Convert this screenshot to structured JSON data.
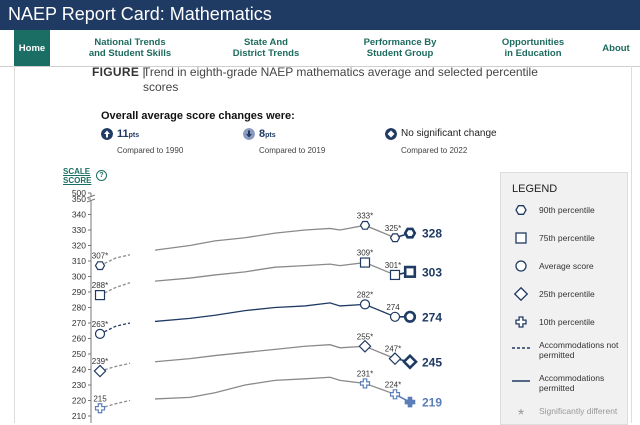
{
  "header": {
    "title": "NAEP Report Card: Mathematics"
  },
  "nav": [
    {
      "lines": [
        "Home"
      ],
      "active": true
    },
    {
      "lines": [
        "National Trends",
        "and Student Skills"
      ],
      "active": false
    },
    {
      "lines": [
        "State And",
        "District Trends"
      ],
      "active": false
    },
    {
      "lines": [
        "Performance By",
        "Student Group"
      ],
      "active": false
    },
    {
      "lines": [
        "Opportunities",
        "in Education"
      ],
      "active": false
    },
    {
      "lines": [
        "About"
      ],
      "active": false
    }
  ],
  "figure": {
    "label": "FIGURE",
    "separator": "|",
    "title": "Trend in eighth-grade NAEP mathematics average and selected percentile scores"
  },
  "summary": {
    "heading": "Overall average score changes were:",
    "items": [
      {
        "value": "11",
        "unit": "pts",
        "sub": "Compared to 1990",
        "icon": "arrow-up-icon"
      },
      {
        "value": "8",
        "unit": "pts",
        "sub": "Compared to 2019",
        "icon": "arrow-down-icon"
      },
      {
        "value": "No significant change",
        "unit": "",
        "sub": "Compared to 2022",
        "icon": "diamond-icon"
      }
    ]
  },
  "colors": {
    "navy": "#1f3a63",
    "teal": "#1a6e63",
    "gray": "#8a8a8a",
    "blue": "#5b7db8"
  },
  "legend": {
    "title": "LEGEND",
    "items": [
      {
        "label": "90th percentile",
        "icon": "hexagon-icon"
      },
      {
        "label": "75th percentile",
        "icon": "square-icon"
      },
      {
        "label": "Average score",
        "icon": "circle-icon"
      },
      {
        "label": "25th percentile",
        "icon": "diamond-icon"
      },
      {
        "label": "10th percentile",
        "icon": "cross-icon"
      },
      {
        "label": "Accommodations not permitted",
        "icon": "dashed-line-icon"
      },
      {
        "label": "Accommodations permitted",
        "icon": "solid-line-icon"
      },
      {
        "label": "Significantly different",
        "icon": "asterisk-icon"
      }
    ]
  },
  "chart_data": {
    "type": "line",
    "ylabel": "SCALE SCORE",
    "help_icon": "question-icon",
    "ylim": [
      210,
      500
    ],
    "axis_break_after": 350,
    "yticks": [
      500,
      350,
      340,
      330,
      320,
      310,
      300,
      290,
      280,
      270,
      260,
      250,
      240,
      230,
      220,
      210
    ],
    "x_index": [
      0,
      1,
      2,
      3,
      4,
      5,
      6,
      7,
      8,
      9,
      10,
      11,
      12,
      13,
      14
    ],
    "series": [
      {
        "name": "90th percentile",
        "marker": "hexagon",
        "values": [
          307,
          312,
          314,
          317,
          320,
          323,
          325,
          328,
          330,
          331,
          330,
          333,
          325,
          328,
          328
        ],
        "labels": [
          {
            "i": 0,
            "text": "307*"
          },
          {
            "i": 11,
            "text": "333*"
          },
          {
            "i": 12,
            "text": "325*"
          }
        ],
        "end_label": "328",
        "color": "gray",
        "last_color": "navy"
      },
      {
        "name": "75th percentile",
        "marker": "square",
        "values": [
          288,
          293,
          296,
          297,
          299,
          301,
          303,
          306,
          307,
          308,
          307,
          309,
          301,
          303,
          303
        ],
        "labels": [
          {
            "i": 0,
            "text": "288*"
          },
          {
            "i": 11,
            "text": "309*"
          },
          {
            "i": 12,
            "text": "301*"
          }
        ],
        "end_label": "303",
        "color": "gray",
        "last_color": "navy"
      },
      {
        "name": "Average score",
        "marker": "circle",
        "values": [
          263,
          268,
          270,
          271,
          273,
          275,
          278,
          280,
          281,
          283,
          281,
          282,
          274,
          274,
          274
        ],
        "labels": [
          {
            "i": 0,
            "text": "263*"
          },
          {
            "i": 11,
            "text": "282*"
          },
          {
            "i": 12,
            "text": "274"
          }
        ],
        "end_label": "274",
        "color": "navy",
        "last_color": "navy"
      },
      {
        "name": "25th percentile",
        "marker": "diamond",
        "values": [
          239,
          242,
          244,
          245,
          247,
          249,
          251,
          253,
          255,
          256,
          254,
          255,
          247,
          245,
          245
        ],
        "labels": [
          {
            "i": 0,
            "text": "239*"
          },
          {
            "i": 11,
            "text": "255*"
          },
          {
            "i": 12,
            "text": "247*"
          }
        ],
        "end_label": "245",
        "color": "gray",
        "last_color": "navy"
      },
      {
        "name": "10th percentile",
        "marker": "cross",
        "values": [
          215,
          218,
          220,
          221,
          222,
          225,
          230,
          233,
          234,
          235,
          233,
          231,
          224,
          219,
          219
        ],
        "labels": [
          {
            "i": 0,
            "text": "215"
          },
          {
            "i": 11,
            "text": "231*"
          },
          {
            "i": 12,
            "text": "224*"
          }
        ],
        "end_label": "219",
        "color": "gray",
        "last_color": "blue"
      }
    ]
  }
}
